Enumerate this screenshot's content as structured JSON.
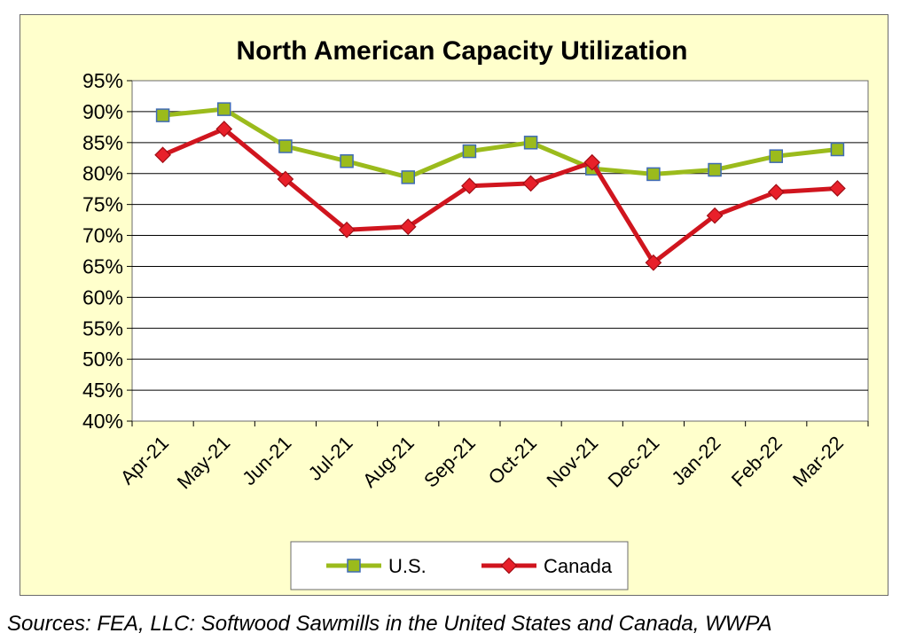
{
  "chart_data": {
    "type": "line",
    "title": "North American Capacity Utilization",
    "categories": [
      "Apr-21",
      "May-21",
      "Jun-21",
      "Jul-21",
      "Aug-21",
      "Sep-21",
      "Oct-21",
      "Nov-21",
      "Dec-21",
      "Jan-22",
      "Feb-22",
      "Mar-22"
    ],
    "series": [
      {
        "name": "U.S.",
        "values": [
          89.4,
          90.4,
          84.4,
          82.0,
          79.4,
          83.6,
          85.0,
          80.8,
          79.9,
          80.6,
          82.8,
          83.9
        ],
        "color": "#9bbb1c",
        "marker": "square",
        "marker_fill": "#9bbb1c",
        "marker_stroke": "#3f6bb5"
      },
      {
        "name": "Canada",
        "values": [
          83.0,
          87.2,
          79.1,
          70.9,
          71.4,
          78.0,
          78.4,
          81.8,
          65.6,
          73.2,
          77.0,
          77.6
        ],
        "color": "#d0151e",
        "marker": "diamond",
        "marker_fill": "#e8202a",
        "marker_stroke": "#a10d14"
      }
    ],
    "y_ticks": [
      "40%",
      "45%",
      "50%",
      "55%",
      "60%",
      "65%",
      "70%",
      "75%",
      "80%",
      "85%",
      "90%",
      "95%"
    ],
    "ylim": [
      40,
      95
    ],
    "ystep": 5,
    "xlabel": "",
    "ylabel": "",
    "grid": true,
    "legend_position": "bottom"
  },
  "source_note": "Sources: FEA, LLC: Softwood Sawmills in the United States and Canada, WWPA",
  "colors": {
    "background": "#ffffcc",
    "plot_area": "#ffffff",
    "grid": "#000000"
  }
}
